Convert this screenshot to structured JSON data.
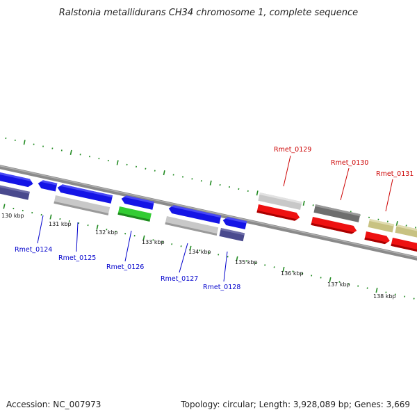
{
  "map": {
    "title": "Ralstonia metallidurans CH34 chromosome 1, complete sequence",
    "accession_text": "Accession: NC_007973",
    "summary_text": "Topology: circular; Length: 3,928,089 bp; Genes: 3,669"
  },
  "scale_labels": [
    {
      "kbp": 130,
      "label": "130 kbp"
    },
    {
      "kbp": 131,
      "label": "131 kbp"
    },
    {
      "kbp": 132,
      "label": "132 kbp"
    },
    {
      "kbp": 133,
      "label": "133 kbp"
    },
    {
      "kbp": 134,
      "label": "134 kbp"
    },
    {
      "kbp": 135,
      "label": "135 kbp"
    },
    {
      "kbp": 136,
      "label": "136 kbp"
    },
    {
      "kbp": 137,
      "label": "137 kbp"
    },
    {
      "kbp": 138,
      "label": "138 kbp"
    }
  ],
  "gene_labels": [
    {
      "name": "Rmet_0124",
      "strand": "reverse",
      "color": "#0000cc"
    },
    {
      "name": "Rmet_0125",
      "strand": "reverse",
      "color": "#0000cc"
    },
    {
      "name": "Rmet_0126",
      "strand": "reverse",
      "color": "#0000cc"
    },
    {
      "name": "Rmet_0127",
      "strand": "reverse",
      "color": "#0000cc"
    },
    {
      "name": "Rmet_0128",
      "strand": "reverse",
      "color": "#0000cc"
    },
    {
      "name": "Rmet_0129",
      "strand": "forward",
      "color": "#cc0000"
    },
    {
      "name": "Rmet_0130",
      "strand": "forward",
      "color": "#cc0000"
    },
    {
      "name": "Rmet_0131",
      "strand": "forward",
      "color": "#cc0000"
    }
  ],
  "colors": {
    "backbone": "#8a8a8a",
    "tick_green": "#228b22",
    "blue": "#1414e6",
    "navy": "#4a4a8e",
    "lightgray": "#c8c8c8",
    "green": "#33cc33",
    "red": "#ee1111",
    "darkgray": "#6e6e6e",
    "khaki": "#c8c282"
  }
}
